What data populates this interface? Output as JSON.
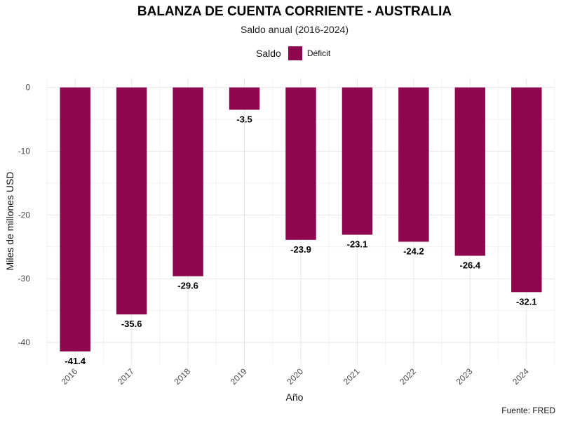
{
  "chart_data": {
    "type": "bar",
    "title": "BALANZA DE CUENTA CORRIENTE - AUSTRALIA",
    "subtitle": "Saldo anual (2016-2024)",
    "xlabel": "Año",
    "ylabel": "Miles de millones USD",
    "categories": [
      "2016",
      "2017",
      "2018",
      "2019",
      "2020",
      "2021",
      "2022",
      "2023",
      "2024"
    ],
    "values": [
      -41.4,
      -35.6,
      -29.6,
      -3.5,
      -23.9,
      -23.1,
      -24.2,
      -26.4,
      -32.1
    ],
    "data_labels": [
      "-41.4",
      "-35.6",
      "-29.6",
      "-3.5",
      "-23.9",
      "-23.1",
      "-24.2",
      "-26.4",
      "-32.1"
    ],
    "ylim": [
      -43.4,
      1.5
    ],
    "y_ticks": [
      0,
      -10,
      -20,
      -30,
      -40
    ],
    "y_tick_labels": [
      "0",
      "-10",
      "-20",
      "-30",
      "-40"
    ],
    "grid": true,
    "legend": {
      "title": "Saldo",
      "placement": "top",
      "entries": [
        {
          "label": "Déficit",
          "color": "#8E064E"
        }
      ]
    },
    "bar_color": "#8E064E",
    "caption": "Fuente: FRED"
  }
}
